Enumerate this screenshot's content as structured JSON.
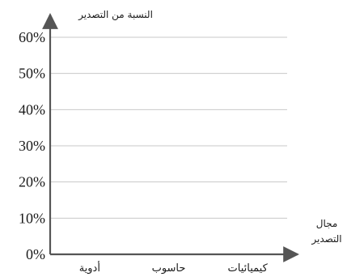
{
  "chart_data": {
    "type": "bar",
    "ylabel": "النسبة من التصدير",
    "xlabel_lines": [
      "مجال",
      "التصدير"
    ],
    "categories": [
      "أدوية",
      "حاسوب",
      "كيميائيات"
    ],
    "values": [
      null,
      null,
      null
    ],
    "yticks": [
      "0%",
      "10%",
      "20%",
      "30%",
      "40%",
      "50%",
      "60%"
    ],
    "ylim": [
      0,
      60
    ],
    "grid": true,
    "colors": {
      "axis": "#555555",
      "grid": "#c8c8c8"
    }
  }
}
